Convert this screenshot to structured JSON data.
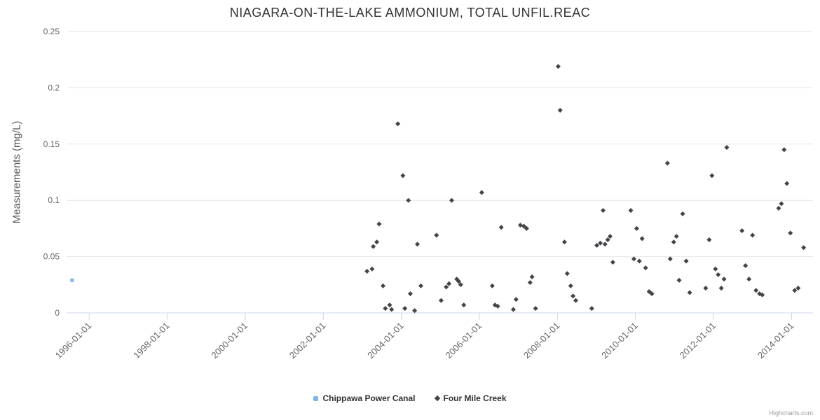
{
  "credits": "Highcharts.com",
  "chart_data": {
    "type": "scatter",
    "title": "NIAGARA-ON-THE-LAKE AMMONIUM, TOTAL UNFIL.REAC",
    "xlabel": "",
    "ylabel": "Measurements (mg/L)",
    "ylim": [
      0,
      0.25
    ],
    "yticks": [
      0,
      0.05,
      0.1,
      0.15,
      0.2,
      0.25
    ],
    "ytick_labels": [
      "0",
      "0.05",
      "0.1",
      "0.15",
      "0.2",
      "0.25"
    ],
    "xlim": [
      1995.42,
      2014.55
    ],
    "xticks": [
      1996,
      1998,
      2000,
      2002,
      2004,
      2006,
      2008,
      2010,
      2012,
      2014
    ],
    "xtick_labels": [
      "1996-01-01",
      "1998-01-01",
      "2000-01-01",
      "2002-01-01",
      "2004-01-01",
      "2006-01-01",
      "2008-01-01",
      "2010-01-01",
      "2012-01-01",
      "2014-01-01"
    ],
    "grid": true,
    "legend_position": "bottom",
    "series": [
      {
        "name": "Chippawa Power Canal",
        "color": "#7cb5ec",
        "marker": "square",
        "points": [
          [
            1995.56,
            0.029
          ]
        ]
      },
      {
        "name": "Four Mile Creek",
        "color": "#434348",
        "marker": "diamond",
        "points": [
          [
            2003.12,
            0.037
          ],
          [
            2003.25,
            0.039
          ],
          [
            2003.28,
            0.059
          ],
          [
            2003.37,
            0.063
          ],
          [
            2003.43,
            0.079
          ],
          [
            2003.53,
            0.024
          ],
          [
            2003.59,
            0.004
          ],
          [
            2003.7,
            0.007
          ],
          [
            2003.75,
            0.003
          ],
          [
            2003.91,
            0.168
          ],
          [
            2004.04,
            0.122
          ],
          [
            2004.09,
            0.004
          ],
          [
            2004.18,
            0.1
          ],
          [
            2004.23,
            0.017
          ],
          [
            2004.34,
            0.002
          ],
          [
            2004.41,
            0.061
          ],
          [
            2004.5,
            0.024
          ],
          [
            2004.9,
            0.069
          ],
          [
            2005.02,
            0.011
          ],
          [
            2005.15,
            0.023
          ],
          [
            2005.22,
            0.026
          ],
          [
            2005.29,
            0.1
          ],
          [
            2005.42,
            0.03
          ],
          [
            2005.47,
            0.028
          ],
          [
            2005.52,
            0.025
          ],
          [
            2005.6,
            0.007
          ],
          [
            2006.06,
            0.107
          ],
          [
            2006.33,
            0.024
          ],
          [
            2006.4,
            0.007
          ],
          [
            2006.47,
            0.006
          ],
          [
            2006.56,
            0.076
          ],
          [
            2006.87,
            0.003
          ],
          [
            2006.94,
            0.012
          ],
          [
            2007.05,
            0.078
          ],
          [
            2007.14,
            0.077
          ],
          [
            2007.21,
            0.075
          ],
          [
            2007.3,
            0.027
          ],
          [
            2007.35,
            0.032
          ],
          [
            2007.44,
            0.004
          ],
          [
            2008.02,
            0.219
          ],
          [
            2008.07,
            0.18
          ],
          [
            2008.18,
            0.063
          ],
          [
            2008.25,
            0.035
          ],
          [
            2008.34,
            0.024
          ],
          [
            2008.4,
            0.015
          ],
          [
            2008.47,
            0.011
          ],
          [
            2008.88,
            0.004
          ],
          [
            2009.01,
            0.06
          ],
          [
            2009.1,
            0.062
          ],
          [
            2009.17,
            0.091
          ],
          [
            2009.22,
            0.061
          ],
          [
            2009.29,
            0.065
          ],
          [
            2009.35,
            0.068
          ],
          [
            2009.42,
            0.045
          ],
          [
            2009.88,
            0.091
          ],
          [
            2009.96,
            0.048
          ],
          [
            2010.03,
            0.075
          ],
          [
            2010.1,
            0.046
          ],
          [
            2010.17,
            0.066
          ],
          [
            2010.26,
            0.04
          ],
          [
            2010.35,
            0.019
          ],
          [
            2010.42,
            0.017
          ],
          [
            2010.82,
            0.133
          ],
          [
            2010.89,
            0.048
          ],
          [
            2010.98,
            0.063
          ],
          [
            2011.05,
            0.068
          ],
          [
            2011.12,
            0.029
          ],
          [
            2011.21,
            0.088
          ],
          [
            2011.3,
            0.046
          ],
          [
            2011.39,
            0.018
          ],
          [
            2011.8,
            0.022
          ],
          [
            2011.89,
            0.065
          ],
          [
            2011.96,
            0.122
          ],
          [
            2012.05,
            0.039
          ],
          [
            2012.12,
            0.034
          ],
          [
            2012.2,
            0.022
          ],
          [
            2012.27,
            0.03
          ],
          [
            2012.34,
            0.147
          ],
          [
            2012.73,
            0.073
          ],
          [
            2012.82,
            0.042
          ],
          [
            2012.91,
            0.03
          ],
          [
            2013.0,
            0.069
          ],
          [
            2013.09,
            0.02
          ],
          [
            2013.18,
            0.017
          ],
          [
            2013.25,
            0.016
          ],
          [
            2013.67,
            0.093
          ],
          [
            2013.74,
            0.097
          ],
          [
            2013.81,
            0.145
          ],
          [
            2013.88,
            0.115
          ],
          [
            2013.97,
            0.071
          ],
          [
            2014.08,
            0.02
          ],
          [
            2014.17,
            0.022
          ],
          [
            2014.31,
            0.058
          ]
        ]
      }
    ]
  }
}
